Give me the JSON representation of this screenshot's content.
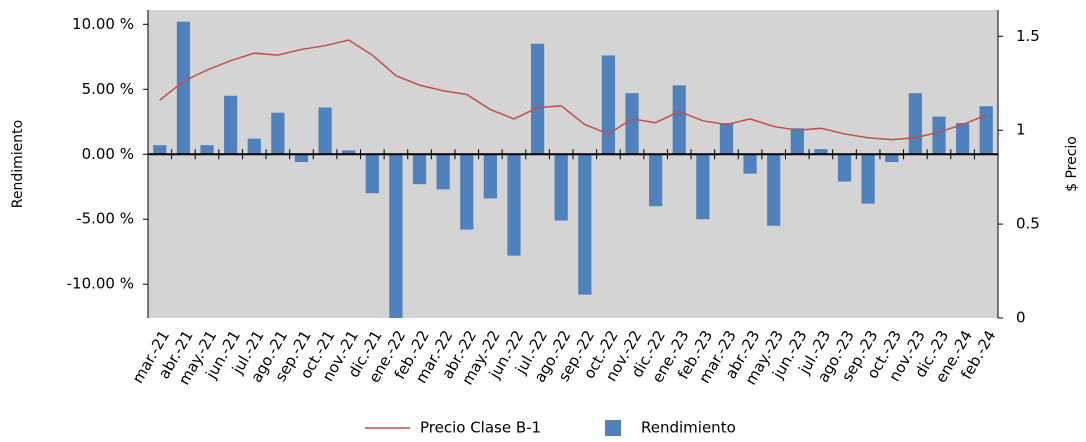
{
  "chart_data": {
    "type": "bar-line",
    "categories": [
      "mar.-21",
      "abr.-21",
      "may.-21",
      "jun.-21",
      "jul.-21",
      "ago.-21",
      "sep.-21",
      "oct.-21",
      "nov.-21",
      "dic.-21",
      "ene.-22",
      "feb.-22",
      "mar.-22",
      "abr.-22",
      "may.-22",
      "jun.-22",
      "jul.-22",
      "ago.-22",
      "sep.-22",
      "oct.-22",
      "nov.-22",
      "dic.-22",
      "ene.-23",
      "feb.-23",
      "mar.-23",
      "abr.-23",
      "may.-23",
      "jun.-23",
      "jul.-23",
      "ago.-23",
      "sep.-23",
      "oct.-23",
      "nov.-23",
      "dic.-23",
      "ene.-24",
      "feb.-24"
    ],
    "series": [
      {
        "name": "Precio Clase B-1",
        "kind": "line",
        "axis": "y2",
        "color": "#c0504d",
        "values": [
          1.16,
          1.26,
          1.32,
          1.37,
          1.41,
          1.4,
          1.43,
          1.45,
          1.48,
          1.4,
          1.29,
          1.24,
          1.21,
          1.19,
          1.11,
          1.06,
          1.12,
          1.13,
          1.03,
          0.98,
          1.06,
          1.04,
          1.1,
          1.05,
          1.03,
          1.06,
          1.02,
          1.0,
          1.01,
          0.98,
          0.96,
          0.95,
          0.96,
          0.99,
          1.03,
          1.08
        ]
      },
      {
        "name": "Rendimiento",
        "kind": "bar",
        "color": "#4f81bd",
        "values": [
          0.7,
          10.2,
          0.7,
          4.5,
          1.2,
          3.2,
          -0.6,
          3.6,
          0.3,
          -3.0,
          -12.6,
          -2.3,
          -2.7,
          -5.8,
          -3.4,
          -7.8,
          8.5,
          -5.1,
          -10.8,
          7.6,
          4.7,
          -4.0,
          5.3,
          -5.0,
          2.4,
          -1.5,
          -5.5,
          2.0,
          0.4,
          -2.1,
          -3.8,
          -0.6,
          4.7,
          2.9,
          2.4,
          3.7
        ]
      }
    ],
    "ylabel": "Rendimiento",
    "y2label": "$ Precio",
    "ylim": [
      -12.6,
      11.1
    ],
    "yticks": [
      {
        "value": 10,
        "label": "10.00 %"
      },
      {
        "value": 5,
        "label": "5.00 %"
      },
      {
        "value": 0,
        "label": "0.00 %"
      },
      {
        "value": -5,
        "label": "-5.00 %"
      },
      {
        "value": -10,
        "label": "-10.00 %"
      }
    ],
    "y2lim": [
      0,
      1.64
    ],
    "y2ticks": [
      0,
      0.5,
      1,
      1.5
    ],
    "grid": false,
    "legend": "bottom"
  }
}
